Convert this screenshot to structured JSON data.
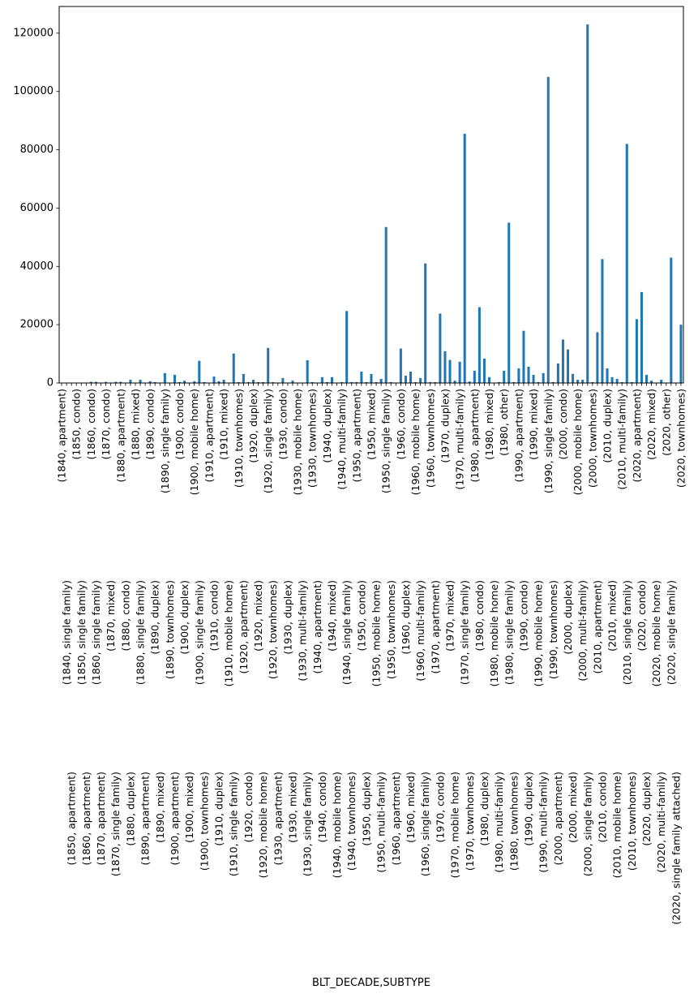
{
  "chart_data": {
    "type": "bar",
    "title": "",
    "xlabel": "BLT_DECADE,SUBTYPE",
    "ylabel": "",
    "ylim": [
      0,
      129150
    ],
    "yticks": [
      0,
      20000,
      40000,
      60000,
      80000,
      100000,
      120000
    ],
    "grid": false,
    "legend": "none",
    "color": "#1f77b4",
    "categories": [
      "(1840, apartment)",
      "(1840, single family)",
      "(1850, apartment)",
      "(1850, condo)",
      "(1850, single family)",
      "(1860, apartment)",
      "(1860, condo)",
      "(1860, single family)",
      "(1870, apartment)",
      "(1870, condo)",
      "(1870, mixed)",
      "(1870, single family)",
      "(1880, apartment)",
      "(1880, condo)",
      "(1880, duplex)",
      "(1880, mixed)",
      "(1880, single family)",
      "(1890, apartment)",
      "(1890, condo)",
      "(1890, duplex)",
      "(1890, mixed)",
      "(1890, single family)",
      "(1890, townhomes)",
      "(1900, apartment)",
      "(1900, condo)",
      "(1900, duplex)",
      "(1900, mixed)",
      "(1900, mobile home)",
      "(1900, single family)",
      "(1900, townhomes)",
      "(1910, apartment)",
      "(1910, condo)",
      "(1910, duplex)",
      "(1910, mixed)",
      "(1910, mobile home)",
      "(1910, single family)",
      "(1910, townhomes)",
      "(1920, apartment)",
      "(1920, condo)",
      "(1920, duplex)",
      "(1920, mixed)",
      "(1920, mobile home)",
      "(1920, single family)",
      "(1920, townhomes)",
      "(1930, apartment)",
      "(1930, condo)",
      "(1930, duplex)",
      "(1930, mixed)",
      "(1930, mobile home)",
      "(1930, multi-family)",
      "(1930, single family)",
      "(1930, townhomes)",
      "(1940, apartment)",
      "(1940, condo)",
      "(1940, duplex)",
      "(1940, mixed)",
      "(1940, mobile home)",
      "(1940, multi-family)",
      "(1940, single family)",
      "(1940, townhomes)",
      "(1950, apartment)",
      "(1950, condo)",
      "(1950, duplex)",
      "(1950, mixed)",
      "(1950, mobile home)",
      "(1950, multi-family)",
      "(1950, single family)",
      "(1950, townhomes)",
      "(1960, apartment)",
      "(1960, condo)",
      "(1960, duplex)",
      "(1960, mixed)",
      "(1960, mobile home)",
      "(1960, multi-family)",
      "(1960, single family)",
      "(1960, townhomes)",
      "(1970, apartment)",
      "(1970, condo)",
      "(1970, duplex)",
      "(1970, mixed)",
      "(1970, mobile home)",
      "(1970, multi-family)",
      "(1970, single family)",
      "(1970, townhomes)",
      "(1980, apartment)",
      "(1980, condo)",
      "(1980, duplex)",
      "(1980, mixed)",
      "(1980, mobile home)",
      "(1980, multi-family)",
      "(1980, other)",
      "(1980, single family)",
      "(1980, townhomes)",
      "(1990, apartment)",
      "(1990, condo)",
      "(1990, duplex)",
      "(1990, mixed)",
      "(1990, mobile home)",
      "(1990, multi-family)",
      "(1990, single family)",
      "(1990, townhomes)",
      "(2000, apartment)",
      "(2000, condo)",
      "(2000, duplex)",
      "(2000, mixed)",
      "(2000, mobile home)",
      "(2000, multi-family)",
      "(2000, single family)",
      "(2000, townhomes)",
      "(2010, apartment)",
      "(2010, condo)",
      "(2010, duplex)",
      "(2010, mixed)",
      "(2010, mobile home)",
      "(2010, multi-family)",
      "(2010, single family)",
      "(2010, townhomes)",
      "(2020, apartment)",
      "(2020, condo)",
      "(2020, duplex)",
      "(2020, mixed)",
      "(2020, mobile home)",
      "(2020, multi-family)",
      "(2020, other)",
      "(2020, single family)",
      "(2020, single family attached)",
      "(2020, townhomes)"
    ],
    "values": [
      20,
      30,
      20,
      10,
      50,
      30,
      400,
      400,
      50,
      400,
      50,
      400,
      400,
      100,
      1100,
      100,
      1100,
      100,
      600,
      300,
      100,
      3400,
      100,
      2800,
      300,
      800,
      100,
      600,
      7600,
      300,
      100,
      2200,
      600,
      1100,
      100,
      10100,
      300,
      3100,
      300,
      1100,
      300,
      300,
      12000,
      300,
      100,
      1700,
      100,
      800,
      100,
      100,
      7800,
      300,
      100,
      2000,
      300,
      2000,
      100,
      300,
      24700,
      300,
      300,
      3900,
      300,
      3100,
      300,
      1400,
      53500,
      300,
      100,
      11800,
      2500,
      3900,
      300,
      1700,
      41000,
      300,
      300,
      23800,
      10900,
      7900,
      800,
      7300,
      85500,
      500,
      4200,
      26000,
      8400,
      2000,
      100,
      300,
      4200,
      55000,
      300,
      5000,
      17900,
      5600,
      2800,
      300,
      3400,
      105000,
      300,
      6700,
      14900,
      11500,
      3100,
      1100,
      1100,
      123000,
      300,
      17400,
      42500,
      5000,
      2000,
      1400,
      300,
      82000,
      300,
      21900,
      31200,
      2800,
      800,
      100,
      1100,
      100,
      43000,
      100,
      20000
    ]
  }
}
